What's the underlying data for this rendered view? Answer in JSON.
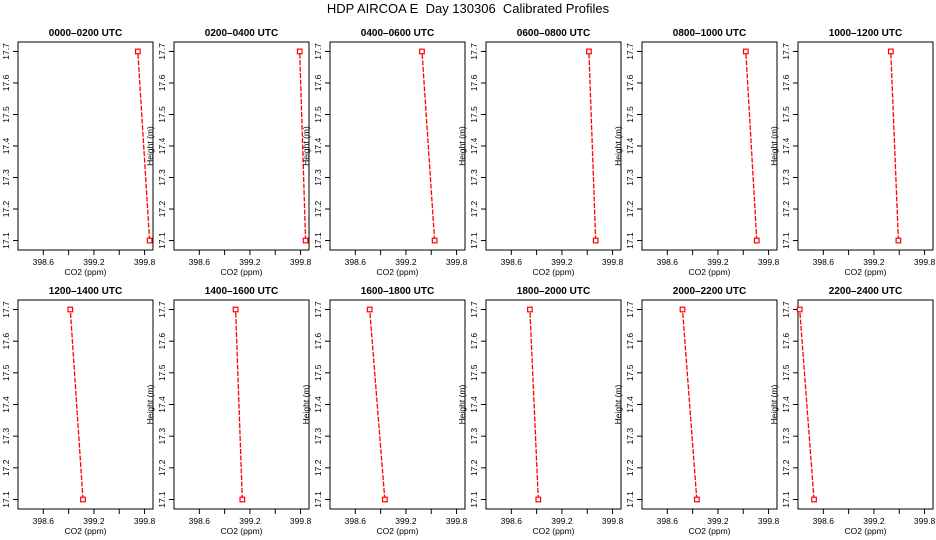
{
  "title": "HDP AIRCOA E  Day 130306  Calibrated Profiles",
  "colors": {
    "series": "#ff0000",
    "axis": "#000000"
  },
  "chart_data": [
    {
      "type": "line",
      "title": "0000–0200 UTC",
      "xlabel": "CO2 (ppm)",
      "ylabel": "Height (m)",
      "xlim": [
        398.3,
        399.9
      ],
      "ylim": [
        17.07,
        17.73
      ],
      "xticks": [
        "398.6",
        "399.2",
        "399.8"
      ],
      "yticks": [
        "17.1",
        "17.2",
        "17.3",
        "17.4",
        "17.5",
        "17.6",
        "17.7"
      ],
      "series": [
        {
          "x": [
            399.86,
            399.72
          ],
          "y": [
            17.1,
            17.7
          ]
        }
      ]
    },
    {
      "type": "line",
      "title": "0200–0400 UTC",
      "xlabel": "CO2 (ppm)",
      "ylabel": "Height (m)",
      "xlim": [
        398.3,
        399.9
      ],
      "ylim": [
        17.07,
        17.73
      ],
      "xticks": [
        "398.6",
        "399.2",
        "399.8"
      ],
      "yticks": [
        "17.1",
        "17.2",
        "17.3",
        "17.4",
        "17.5",
        "17.6",
        "17.7"
      ],
      "series": [
        {
          "x": [
            399.86,
            399.79
          ],
          "y": [
            17.1,
            17.7
          ]
        }
      ]
    },
    {
      "type": "line",
      "title": "0400–0600 UTC",
      "xlabel": "CO2 (ppm)",
      "ylabel": "Height (m)",
      "xlim": [
        398.3,
        399.9
      ],
      "ylim": [
        17.07,
        17.73
      ],
      "xticks": [
        "398.6",
        "399.2",
        "399.8"
      ],
      "yticks": [
        "17.1",
        "17.2",
        "17.3",
        "17.4",
        "17.5",
        "17.6",
        "17.7"
      ],
      "series": [
        {
          "x": [
            399.54,
            399.39
          ],
          "y": [
            17.1,
            17.7
          ]
        }
      ]
    },
    {
      "type": "line",
      "title": "0600–0800 UTC",
      "xlabel": "CO2 (ppm)",
      "ylabel": "Height (m)",
      "xlim": [
        398.3,
        399.9
      ],
      "ylim": [
        17.07,
        17.73
      ],
      "xticks": [
        "398.6",
        "399.2",
        "399.8"
      ],
      "yticks": [
        "17.1",
        "17.2",
        "17.3",
        "17.4",
        "17.5",
        "17.6",
        "17.7"
      ],
      "series": [
        {
          "x": [
            399.6,
            399.52
          ],
          "y": [
            17.1,
            17.7
          ]
        }
      ]
    },
    {
      "type": "line",
      "title": "0800–1000 UTC",
      "xlabel": "CO2 (ppm)",
      "ylabel": "Height (m)",
      "xlim": [
        398.3,
        399.9
      ],
      "ylim": [
        17.07,
        17.73
      ],
      "xticks": [
        "398.6",
        "399.2",
        "399.8"
      ],
      "yticks": [
        "17.1",
        "17.2",
        "17.3",
        "17.4",
        "17.5",
        "17.6",
        "17.7"
      ],
      "series": [
        {
          "x": [
            399.66,
            399.53
          ],
          "y": [
            17.1,
            17.7
          ]
        }
      ]
    },
    {
      "type": "line",
      "title": "1000–1200 UTC",
      "xlabel": "CO2 (ppm)",
      "ylabel": "Height (m)",
      "xlim": [
        398.3,
        399.9
      ],
      "ylim": [
        17.07,
        17.73
      ],
      "xticks": [
        "398.6",
        "399.2",
        "399.8"
      ],
      "yticks": [
        "17.1",
        "17.2",
        "17.3",
        "17.4",
        "17.5",
        "17.6",
        "17.7"
      ],
      "series": [
        {
          "x": [
            399.49,
            399.4
          ],
          "y": [
            17.1,
            17.7
          ]
        }
      ]
    },
    {
      "type": "line",
      "title": "1200–1400 UTC",
      "xlabel": "CO2 (ppm)",
      "ylabel": "Height (m)",
      "xlim": [
        398.3,
        399.9
      ],
      "ylim": [
        17.07,
        17.73
      ],
      "xticks": [
        "398.6",
        "399.2",
        "399.8"
      ],
      "yticks": [
        "17.1",
        "17.2",
        "17.3",
        "17.4",
        "17.5",
        "17.6",
        "17.7"
      ],
      "series": [
        {
          "x": [
            399.07,
            398.92
          ],
          "y": [
            17.1,
            17.7
          ]
        }
      ]
    },
    {
      "type": "line",
      "title": "1400–1600 UTC",
      "xlabel": "CO2 (ppm)",
      "ylabel": "Height (m)",
      "xlim": [
        398.3,
        399.9
      ],
      "ylim": [
        17.07,
        17.73
      ],
      "xticks": [
        "398.6",
        "399.2",
        "399.8"
      ],
      "yticks": [
        "17.1",
        "17.2",
        "17.3",
        "17.4",
        "17.5",
        "17.6",
        "17.7"
      ],
      "series": [
        {
          "x": [
            399.11,
            399.03
          ],
          "y": [
            17.1,
            17.7
          ]
        }
      ]
    },
    {
      "type": "line",
      "title": "1600–1800 UTC",
      "xlabel": "CO2 (ppm)",
      "ylabel": "Height (m)",
      "xlim": [
        398.3,
        399.9
      ],
      "ylim": [
        17.07,
        17.73
      ],
      "xticks": [
        "398.6",
        "399.2",
        "399.8"
      ],
      "yticks": [
        "17.1",
        "17.2",
        "17.3",
        "17.4",
        "17.5",
        "17.6",
        "17.7"
      ],
      "series": [
        {
          "x": [
            398.95,
            398.77
          ],
          "y": [
            17.1,
            17.7
          ]
        }
      ]
    },
    {
      "type": "line",
      "title": "1800–2000 UTC",
      "xlabel": "CO2 (ppm)",
      "ylabel": "Height (m)",
      "xlim": [
        398.3,
        399.9
      ],
      "ylim": [
        17.07,
        17.73
      ],
      "xticks": [
        "398.6",
        "399.2",
        "399.8"
      ],
      "yticks": [
        "17.1",
        "17.2",
        "17.3",
        "17.4",
        "17.5",
        "17.6",
        "17.7"
      ],
      "series": [
        {
          "x": [
            398.92,
            398.82
          ],
          "y": [
            17.1,
            17.7
          ]
        }
      ]
    },
    {
      "type": "line",
      "title": "2000–2200 UTC",
      "xlabel": "CO2 (ppm)",
      "ylabel": "Height (m)",
      "xlim": [
        398.3,
        399.9
      ],
      "ylim": [
        17.07,
        17.73
      ],
      "xticks": [
        "398.6",
        "399.2",
        "399.8"
      ],
      "yticks": [
        "17.1",
        "17.2",
        "17.3",
        "17.4",
        "17.5",
        "17.6",
        "17.7"
      ],
      "series": [
        {
          "x": [
            398.95,
            398.78
          ],
          "y": [
            17.1,
            17.7
          ]
        }
      ]
    },
    {
      "type": "line",
      "title": "2200–2400 UTC",
      "xlabel": "CO2 (ppm)",
      "ylabel": "Height (m)",
      "xlim": [
        398.3,
        399.9
      ],
      "ylim": [
        17.07,
        17.73
      ],
      "xticks": [
        "398.6",
        "399.2",
        "399.8"
      ],
      "yticks": [
        "17.1",
        "17.2",
        "17.3",
        "17.4",
        "17.5",
        "17.6",
        "17.7"
      ],
      "series": [
        {
          "x": [
            398.49,
            398.32
          ],
          "y": [
            17.1,
            17.7
          ]
        }
      ]
    }
  ]
}
